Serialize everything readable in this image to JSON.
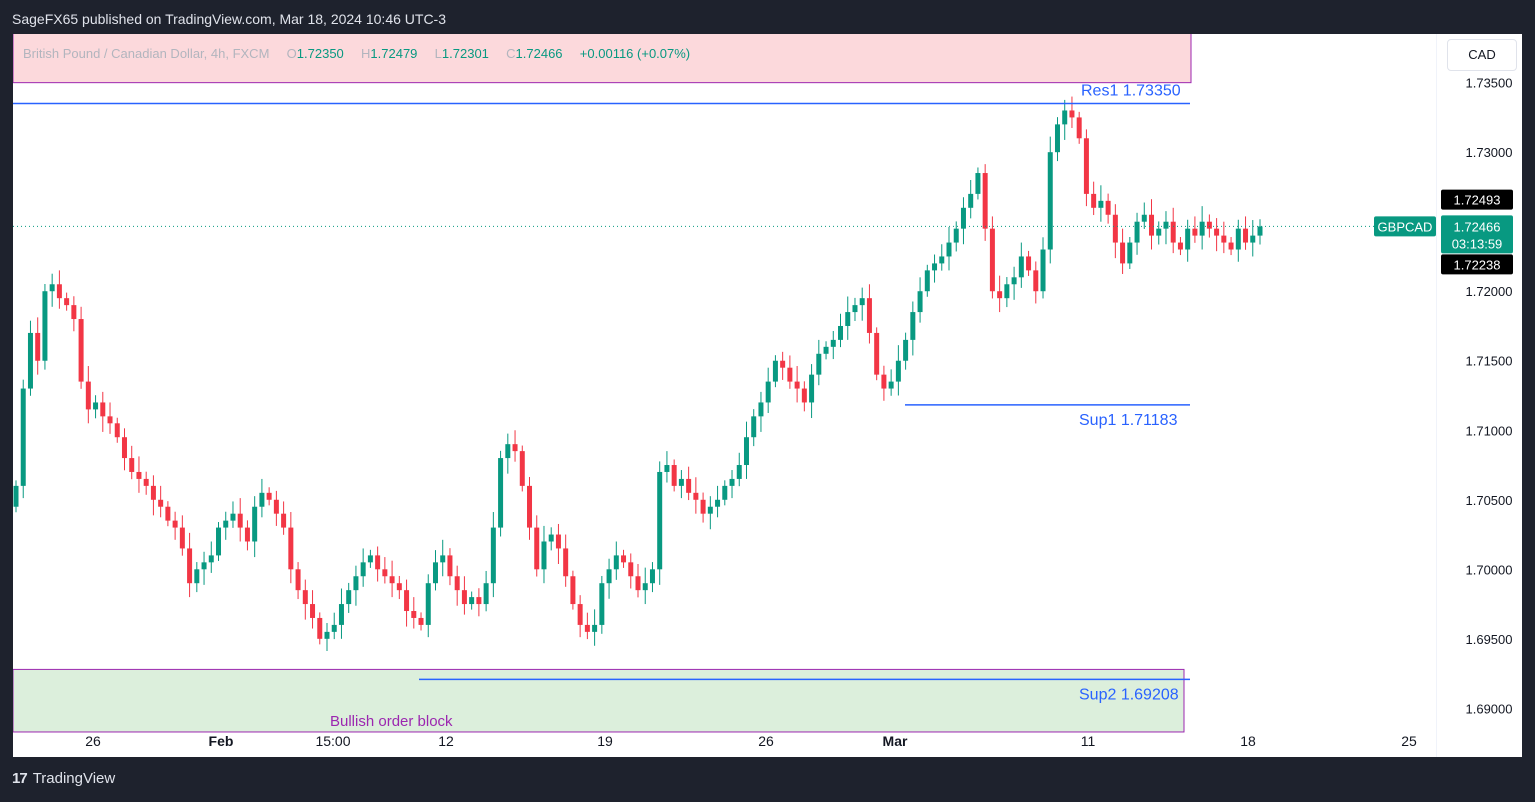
{
  "header": {
    "publish_text": "SageFX65 published on TradingView.com, Mar 18, 2024 10:46 UTC-3"
  },
  "legend": {
    "symbol": "British Pound / Canadian Dollar, 4h, FXCM",
    "o_label": "O",
    "o_value": "1.72350",
    "h_label": "H",
    "h_value": "1.72479",
    "l_label": "L",
    "l_value": "1.72301",
    "c_label": "C",
    "c_value": "1.72466",
    "change": "+0.00116 (+0.07%)"
  },
  "currency": "CAD",
  "footer": {
    "brand": "TradingView"
  },
  "colors": {
    "bull": "#089981",
    "bear": "#f23645",
    "level_line": "#2962ff",
    "zone_red": "#fcd9dc",
    "zone_green": "#dcefdc",
    "zone_border": "#9c27b0"
  },
  "chart_data": {
    "type": "candlestick",
    "symbol": "GBPCAD",
    "timeframe": "4h",
    "ylim": [
      1.6865,
      1.7385
    ],
    "y_ticks": [
      "1.73500",
      "1.73000",
      "1.72000",
      "1.71500",
      "1.71000",
      "1.70500",
      "1.70000",
      "1.69500",
      "1.69000"
    ],
    "x_ticks": [
      {
        "label": "26",
        "bold": false
      },
      {
        "label": "Feb",
        "bold": true
      },
      {
        "label": "15:00",
        "bold": false
      },
      {
        "label": "12",
        "bold": false
      },
      {
        "label": "19",
        "bold": false
      },
      {
        "label": "26",
        "bold": false
      },
      {
        "label": "Mar",
        "bold": true
      },
      {
        "label": "11",
        "bold": false
      },
      {
        "label": "18",
        "bold": false
      },
      {
        "label": "25",
        "bold": false
      }
    ],
    "levels": [
      {
        "label": "Res1 1.73350",
        "value": 1.7335
      },
      {
        "label": "Sup1 1.71183",
        "value": 1.71183
      },
      {
        "label": "Sup2 1.69208",
        "value": 1.69208
      }
    ],
    "zones": [
      {
        "label": "",
        "type": "supply",
        "from": 1.735,
        "to": 1.7395
      },
      {
        "label": "Bullish order block",
        "type": "demand",
        "from": 1.6883,
        "to": 1.6928
      }
    ],
    "price_labels": {
      "high_marker": "1.72493",
      "current_symbol": "GBPCAD",
      "current_price": "1.72466",
      "countdown": "03:13:59",
      "low_marker": "1.72238",
      "current_value": 1.72466,
      "high_value": 1.72493,
      "low_value": 1.72238
    },
    "closes": [
      1.706,
      1.713,
      1.717,
      1.715,
      1.72,
      1.7205,
      1.7195,
      1.719,
      1.718,
      1.7135,
      1.7115,
      1.712,
      1.711,
      1.7105,
      1.7095,
      1.708,
      1.707,
      1.7065,
      1.706,
      1.705,
      1.7045,
      1.7035,
      1.703,
      1.7015,
      1.699,
      1.7,
      1.7005,
      1.701,
      1.703,
      1.7035,
      1.704,
      1.703,
      1.702,
      1.7045,
      1.7055,
      1.705,
      1.704,
      1.703,
      1.7,
      1.6985,
      1.6975,
      1.6965,
      1.695,
      1.6955,
      1.696,
      1.6975,
      1.6985,
      1.6995,
      1.7005,
      1.701,
      1.7,
      1.6995,
      1.699,
      1.6985,
      1.697,
      1.6965,
      1.696,
      1.699,
      1.7005,
      1.701,
      1.6995,
      1.6985,
      1.6975,
      1.698,
      1.6975,
      1.699,
      1.703,
      1.708,
      1.709,
      1.7085,
      1.706,
      1.703,
      1.7,
      1.702,
      1.7025,
      1.7015,
      1.6995,
      1.6975,
      1.696,
      1.6955,
      1.696,
      1.699,
      1.7,
      1.701,
      1.7005,
      1.6995,
      1.6985,
      1.699,
      1.7,
      1.707,
      1.7075,
      1.706,
      1.7065,
      1.7055,
      1.705,
      1.704,
      1.7045,
      1.705,
      1.706,
      1.7065,
      1.7075,
      1.7095,
      1.711,
      1.712,
      1.7135,
      1.715,
      1.7145,
      1.7135,
      1.713,
      1.712,
      1.714,
      1.7155,
      1.716,
      1.7165,
      1.7175,
      1.7185,
      1.719,
      1.7195,
      1.717,
      1.714,
      1.713,
      1.7135,
      1.715,
      1.7165,
      1.7185,
      1.72,
      1.7215,
      1.722,
      1.7225,
      1.7235,
      1.7245,
      1.726,
      1.727,
      1.7285,
      1.7245,
      1.72,
      1.7195,
      1.7205,
      1.721,
      1.7225,
      1.7215,
      1.72,
      1.723,
      1.73,
      1.732,
      1.733,
      1.7325,
      1.731,
      1.727,
      1.726,
      1.7265,
      1.7255,
      1.7235,
      1.722,
      1.7235,
      1.725,
      1.7255,
      1.724,
      1.7245,
      1.725,
      1.7235,
      1.723,
      1.7245,
      1.724,
      1.725,
      1.7245,
      1.724,
      1.7235,
      1.723,
      1.7245,
      1.7235,
      1.724,
      1.72466
    ]
  }
}
